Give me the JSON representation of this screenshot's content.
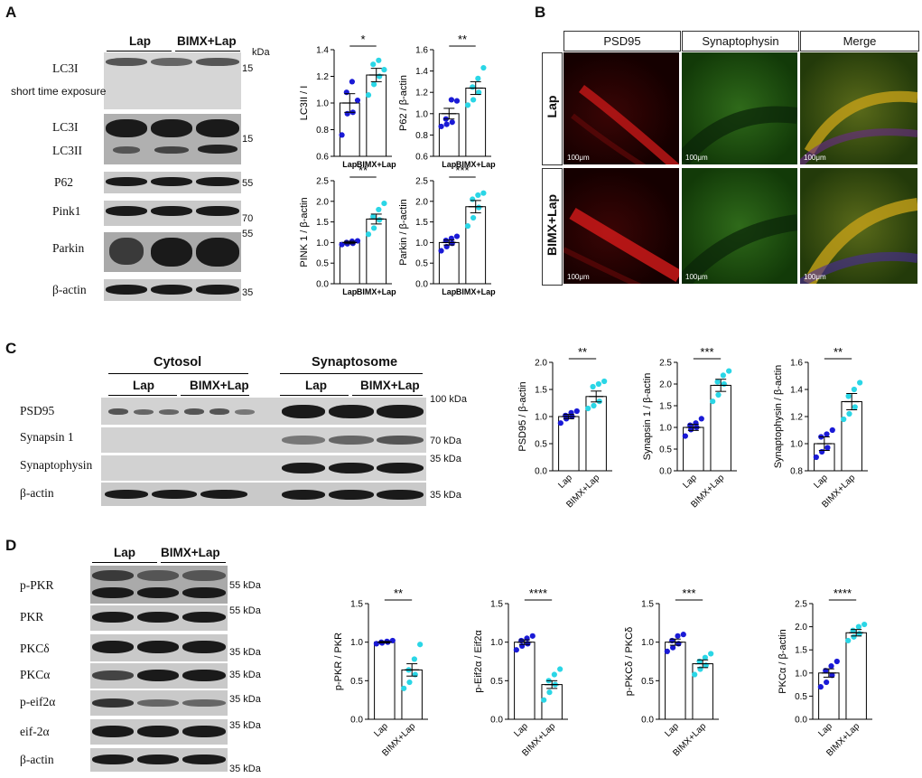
{
  "panels": {
    "A": "A",
    "B": "B",
    "C": "C",
    "D": "D"
  },
  "units": {
    "kda": "kDa"
  },
  "A": {
    "groups": {
      "lap": "Lap",
      "bimx": "BIMX+Lap"
    },
    "labels": {
      "lc3i_top": "LC3I",
      "short": "short time exposure",
      "lc3i": "LC3I",
      "lc3ii": "LC3II",
      "p62": "P62",
      "pink1": "Pink1",
      "parkin": "Parkin",
      "bactin": "β-actin"
    },
    "markers": {
      "m15a": "15",
      "m15b": "15",
      "m55a": "55",
      "m70": "70",
      "m55b": "55",
      "m35": "35"
    }
  },
  "B": {
    "columns": [
      "PSD95",
      "Synaptophysin",
      "Merge"
    ],
    "rows": [
      "Lap",
      "BIMX+Lap"
    ],
    "scale": "100μm"
  },
  "C": {
    "sections": {
      "cytosol": "Cytosol",
      "synaptosome": "Synaptosome"
    },
    "groups": {
      "lap1": "Lap",
      "bimx1": "BIMX+Lap",
      "lap2": "Lap",
      "bimx2": "BIMX+Lap"
    },
    "labels": {
      "psd95": "PSD95",
      "synapsin": "Synapsin 1",
      "synaptophysin": "Synaptophysin",
      "bactin": "β-actin"
    },
    "markers": {
      "m100": "100 kDa",
      "m70": "70 kDa",
      "m35a": "35 kDa",
      "m35b": "35 kDa"
    }
  },
  "D": {
    "groups": {
      "lap": "Lap",
      "bimx": "BIMX+Lap"
    },
    "labels": {
      "ppkr": "p-PKR",
      "pkr": "PKR",
      "pkcd": "PKCδ",
      "pkca": "PKCα",
      "peif": "p-eif2α",
      "eif": "eif-2α",
      "bactin": "β-actin"
    },
    "markers": {
      "m55a": "55  kDa",
      "m55b": "55  kDa",
      "m35a": "35 kDa",
      "m35b": "35 kDa",
      "m35c": "35 kDa",
      "m35d": "35 kDa",
      "m35e": "35 kDa"
    }
  },
  "chart_data": [
    {
      "id": "A1",
      "type": "bar",
      "categories": [
        "Lap",
        "BIMX+Lap"
      ],
      "values": [
        1.0,
        1.21
      ],
      "errors": [
        0.07,
        0.05
      ],
      "ylabel": "LC3II / I",
      "ylim": [
        0.6,
        1.4
      ],
      "yticks": [
        0.6,
        0.8,
        1.0,
        1.2,
        1.4
      ],
      "sig": "*",
      "points": [
        [
          0.76,
          0.92,
          0.93,
          1.08,
          1.16,
          1.02
        ],
        [
          1.06,
          1.14,
          1.2,
          1.29,
          1.32,
          1.25
        ]
      ]
    },
    {
      "id": "A2",
      "type": "bar",
      "categories": [
        "Lap",
        "BIMX+Lap"
      ],
      "values": [
        1.0,
        1.24
      ],
      "errors": [
        0.05,
        0.06
      ],
      "ylabel": "P62 / β-actin",
      "ylim": [
        0.6,
        1.6
      ],
      "yticks": [
        0.6,
        0.8,
        1.0,
        1.2,
        1.4,
        1.6
      ],
      "sig": "**",
      "points": [
        [
          0.88,
          0.9,
          0.92,
          0.95,
          1.13,
          1.12
        ],
        [
          1.08,
          1.13,
          1.2,
          1.25,
          1.33,
          1.43
        ]
      ]
    },
    {
      "id": "A3",
      "type": "bar",
      "categories": [
        "Lap",
        "BIMX+Lap"
      ],
      "values": [
        1.0,
        1.57
      ],
      "errors": [
        0.03,
        0.12
      ],
      "ylabel": "PINK 1 / β-actin",
      "ylim": [
        0.0,
        2.5
      ],
      "yticks": [
        0.0,
        0.5,
        1.0,
        1.5,
        2.0,
        2.5
      ],
      "sig": "**",
      "points": [
        [
          0.95,
          0.97,
          0.98,
          1.0,
          1.03,
          1.04
        ],
        [
          1.2,
          1.35,
          1.55,
          1.63,
          1.8,
          1.95
        ]
      ]
    },
    {
      "id": "A4",
      "type": "bar",
      "categories": [
        "Lap",
        "BIMX+Lap"
      ],
      "values": [
        1.0,
        1.87
      ],
      "errors": [
        0.06,
        0.15
      ],
      "ylabel": "Parkin / β-actin",
      "ylim": [
        0.0,
        2.5
      ],
      "yticks": [
        0.0,
        0.5,
        1.0,
        1.5,
        2.0,
        2.5
      ],
      "sig": "***",
      "points": [
        [
          0.8,
          0.9,
          0.98,
          1.05,
          1.1,
          1.15
        ],
        [
          1.4,
          1.6,
          1.85,
          2.05,
          2.15,
          2.2
        ]
      ]
    },
    {
      "id": "C1",
      "type": "bar",
      "categories": [
        "Lap",
        "BIMX+Lap"
      ],
      "values": [
        1.0,
        1.37
      ],
      "errors": [
        0.04,
        0.1
      ],
      "ylabel": "PSD95 / β-actin",
      "ylim": [
        0.0,
        2.0
      ],
      "yticks": [
        0.0,
        0.5,
        1.0,
        1.5,
        2.0
      ],
      "sig": "**",
      "points": [
        [
          0.88,
          0.96,
          1.0,
          1.02,
          1.07,
          1.1
        ],
        [
          1.15,
          1.2,
          1.28,
          1.55,
          1.6,
          1.65
        ]
      ]
    },
    {
      "id": "C2",
      "type": "bar",
      "categories": [
        "Lap",
        "BIMX+Lap"
      ],
      "values": [
        1.0,
        1.97
      ],
      "errors": [
        0.07,
        0.14
      ],
      "ylabel": "Synapsin 1 / β-actin",
      "ylim": [
        0.0,
        2.5
      ],
      "yticks": [
        0.0,
        0.5,
        1.0,
        1.5,
        2.0,
        2.5
      ],
      "sig": "***",
      "points": [
        [
          0.8,
          0.95,
          1.0,
          1.05,
          1.1,
          1.2
        ],
        [
          1.6,
          1.75,
          2.0,
          2.05,
          2.2,
          2.3
        ]
      ]
    },
    {
      "id": "C3",
      "type": "bar",
      "categories": [
        "Lap",
        "BIMX+Lap"
      ],
      "values": [
        1.0,
        1.31
      ],
      "errors": [
        0.05,
        0.06
      ],
      "ylabel": "Synaptophysin / β-actin",
      "ylim": [
        0.8,
        1.6
      ],
      "yticks": [
        0.8,
        1.0,
        1.2,
        1.4,
        1.6
      ],
      "sig": "**",
      "points": [
        [
          0.9,
          0.94,
          0.97,
          1.05,
          1.07,
          1.1
        ],
        [
          1.18,
          1.22,
          1.27,
          1.35,
          1.4,
          1.45
        ]
      ]
    },
    {
      "id": "D1",
      "type": "bar",
      "categories": [
        "Lap",
        "BIMX+Lap"
      ],
      "values": [
        1.0,
        0.64
      ],
      "errors": [
        0.01,
        0.08
      ],
      "ylabel": "p-PKR / PKR",
      "ylim": [
        0.0,
        1.5
      ],
      "yticks": [
        0.0,
        0.5,
        1.0,
        1.5
      ],
      "sig": "**",
      "points": [
        [
          0.98,
          0.99,
          1.0,
          1.0,
          1.01,
          1.02
        ],
        [
          0.4,
          0.48,
          0.58,
          0.64,
          0.78,
          0.97
        ]
      ]
    },
    {
      "id": "D2",
      "type": "bar",
      "categories": [
        "Lap",
        "BIMX+Lap"
      ],
      "values": [
        1.0,
        0.45
      ],
      "errors": [
        0.03,
        0.05
      ],
      "ylabel": "p-Eif2α / Eif2α",
      "ylim": [
        0.0,
        1.5
      ],
      "yticks": [
        0.0,
        0.5,
        1.0,
        1.5
      ],
      "sig": "****",
      "points": [
        [
          0.9,
          0.95,
          0.98,
          1.02,
          1.05,
          1.08
        ],
        [
          0.25,
          0.35,
          0.45,
          0.5,
          0.58,
          0.65
        ]
      ]
    },
    {
      "id": "D3",
      "type": "bar",
      "categories": [
        "Lap",
        "BIMX+Lap"
      ],
      "values": [
        1.0,
        0.72
      ],
      "errors": [
        0.04,
        0.05
      ],
      "ylabel": "p-PKCδ / PKCδ",
      "ylim": [
        0.0,
        1.5
      ],
      "yticks": [
        0.0,
        0.5,
        1.0,
        1.5
      ],
      "sig": "***",
      "points": [
        [
          0.88,
          0.93,
          0.98,
          1.02,
          1.08,
          1.1
        ],
        [
          0.58,
          0.65,
          0.7,
          0.75,
          0.8,
          0.85
        ]
      ]
    },
    {
      "id": "D4",
      "type": "bar",
      "categories": [
        "Lap",
        "BIMX+Lap"
      ],
      "values": [
        1.0,
        1.87
      ],
      "errors": [
        0.09,
        0.07
      ],
      "ylabel": "PKCα / β-actin",
      "ylim": [
        0.0,
        2.5
      ],
      "yticks": [
        0.0,
        0.5,
        1.0,
        1.5,
        2.0,
        2.5
      ],
      "sig": "****",
      "points": [
        [
          0.7,
          0.8,
          0.95,
          1.05,
          1.15,
          1.25
        ],
        [
          1.7,
          1.78,
          1.85,
          1.92,
          2.0,
          2.05
        ]
      ]
    }
  ],
  "colors": {
    "lap": "#1a1ad6",
    "bimx": "#2ad6e6"
  }
}
